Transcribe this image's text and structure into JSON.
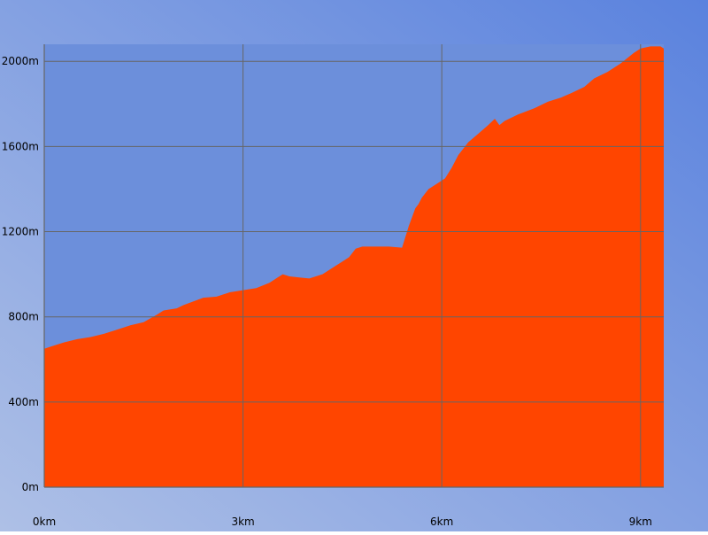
{
  "chart_data": {
    "type": "area",
    "title": "",
    "xlabel": "",
    "ylabel": "",
    "x_unit": "km",
    "y_unit": "m",
    "xlim": [
      0,
      9.35
    ],
    "ylim": [
      0,
      2080
    ],
    "x_ticks": [
      0,
      3,
      6,
      9
    ],
    "y_ticks": [
      0,
      400,
      800,
      1200,
      1600,
      2000
    ],
    "x_tick_labels": [
      "0km",
      "3km",
      "6km",
      "9km"
    ],
    "y_tick_labels": [
      "0m",
      "400m",
      "800m",
      "1200m",
      "1600m",
      "2000m"
    ],
    "grid": true,
    "legend": "none",
    "colors": {
      "fill": "#ff4500",
      "grid": "#666666",
      "axis": "#555555",
      "bg_light": "#aec0e6",
      "bg_dark": "#5a82de",
      "plot_bg": "#6c8fdb"
    },
    "series": [
      {
        "x": [
          0,
          0.1,
          0.3,
          0.5,
          0.7,
          0.9,
          1.1,
          1.3,
          1.5,
          1.7,
          1.8,
          2.0,
          2.1,
          2.4,
          2.6,
          2.8,
          3.0,
          3.2,
          3.4,
          3.5,
          3.6,
          3.7,
          3.85,
          4.0,
          4.2,
          4.4,
          4.5,
          4.6,
          4.7,
          4.8,
          4.9,
          5.0,
          5.2,
          5.4,
          5.5,
          5.6,
          5.65,
          5.7,
          5.8,
          5.95,
          6.05,
          6.15,
          6.25,
          6.4,
          6.55,
          6.7,
          6.8,
          6.87,
          6.95,
          7.15,
          7.4,
          7.6,
          7.8,
          7.95,
          8.15,
          8.3,
          8.5,
          8.7,
          8.9,
          9.0,
          9.15,
          9.3,
          9.35
        ],
        "y": [
          650,
          660,
          680,
          695,
          705,
          720,
          740,
          760,
          775,
          810,
          830,
          840,
          855,
          890,
          895,
          915,
          925,
          935,
          960,
          980,
          1000,
          990,
          985,
          980,
          1000,
          1040,
          1060,
          1080,
          1120,
          1130,
          1130,
          1130,
          1130,
          1125,
          1225,
          1310,
          1330,
          1360,
          1400,
          1430,
          1450,
          1500,
          1560,
          1620,
          1660,
          1700,
          1730,
          1700,
          1720,
          1750,
          1780,
          1810,
          1830,
          1850,
          1880,
          1920,
          1950,
          1990,
          2040,
          2060,
          2070,
          2070,
          2060
        ]
      }
    ]
  }
}
